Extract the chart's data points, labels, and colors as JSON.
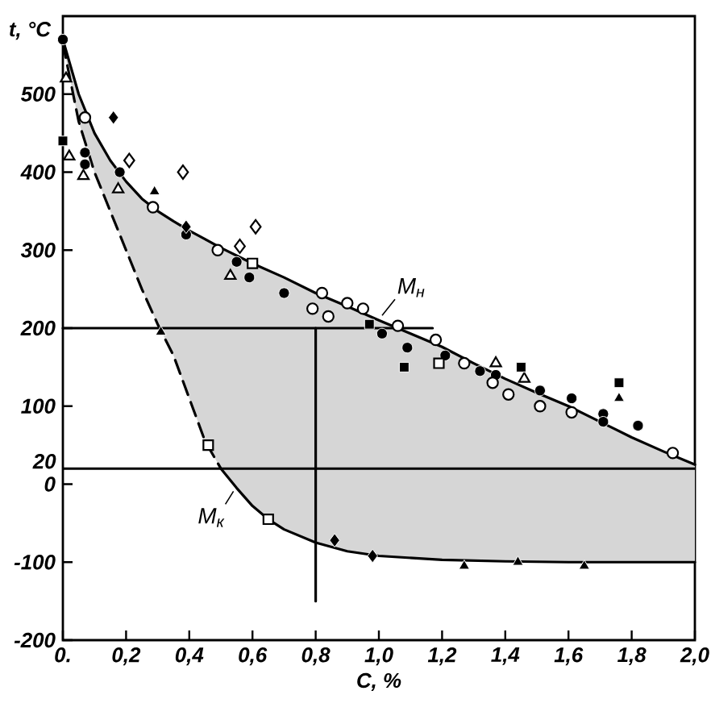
{
  "chart_data": {
    "type": "scatter",
    "xlabel": "C, %",
    "ylabel": "t, °C",
    "xlim": [
      0,
      2
    ],
    "ylim": [
      -200,
      600
    ],
    "xticks": [
      {
        "value": 0,
        "label": "0."
      },
      {
        "value": 0.2,
        "label": "0,2"
      },
      {
        "value": 0.4,
        "label": "0,4"
      },
      {
        "value": 0.6,
        "label": "0,6"
      },
      {
        "value": 0.8,
        "label": "0,8"
      },
      {
        "value": 1.0,
        "label": "1,0"
      },
      {
        "value": 1.2,
        "label": "1,2"
      },
      {
        "value": 1.4,
        "label": "1,4"
      },
      {
        "value": 1.6,
        "label": "1,6"
      },
      {
        "value": 1.8,
        "label": "1,8"
      },
      {
        "value": 2.0,
        "label": "2,0"
      }
    ],
    "yticks": [
      -200,
      -100,
      0,
      100,
      200,
      300,
      400,
      500
    ],
    "ref_lines": [
      {
        "axis": "y",
        "value": 20,
        "label": "20",
        "color": "#000000",
        "line_style": "solid"
      }
    ],
    "series": [
      {
        "name": "M$_{н}$",
        "type": "line",
        "color": "#000000",
        "line_style": "solid",
        "x": [
          0,
          0.05,
          0.1,
          0.15,
          0.2,
          0.25,
          0.3,
          0.35,
          0.4,
          0.45,
          0.5,
          0.6,
          0.7,
          0.8,
          0.9,
          1.0,
          1.1,
          1.2,
          1.3,
          1.4,
          1.5,
          1.6,
          1.7,
          1.8,
          1.9,
          2.0
        ],
        "values": [
          570,
          500,
          450,
          415,
          388,
          366,
          350,
          337,
          325,
          314,
          303,
          283,
          265,
          245,
          228,
          210,
          193,
          176,
          155,
          135,
          117,
          100,
          80,
          60,
          42,
          25
        ],
        "upper": [
          570,
          500,
          450,
          415,
          388,
          366,
          350,
          337,
          325,
          314,
          303,
          283,
          265,
          245,
          228,
          210,
          193,
          176,
          155,
          135,
          117,
          100,
          80,
          60,
          42,
          25
        ],
        "lower": [
          565,
          465,
          400,
          350,
          300,
          250,
          205,
          165,
          110,
          55,
          20,
          -28,
          -58,
          -75,
          -86,
          -92,
          -95,
          -97,
          -98,
          -99,
          -100,
          -100,
          -100,
          -100,
          -100,
          -100
        ]
      },
      {
        "type": "line",
        "color": "#000000",
        "line_style": "dashed",
        "x": [
          0,
          0.05,
          0.1,
          0.15,
          0.2,
          0.25,
          0.3,
          0.35,
          0.4,
          0.45,
          0.5
        ],
        "values": [
          565,
          465,
          400,
          350,
          300,
          250,
          205,
          165,
          110,
          55,
          20
        ]
      },
      {
        "name": "M$_{к}$",
        "type": "line",
        "color": "#000000",
        "line_style": "solid",
        "x": [
          0.5,
          0.55,
          0.6,
          0.65,
          0.7,
          0.8,
          0.9,
          1.0,
          1.2,
          1.4,
          1.6,
          1.8,
          2.0
        ],
        "values": [
          20,
          -5,
          -28,
          -45,
          -58,
          -75,
          -86,
          -92,
          -97,
          -99,
          -100,
          -100,
          -100
        ]
      },
      {
        "type": "line",
        "color": "#000000",
        "line_style": "solid",
        "x": [
          0.8,
          0.8
        ],
        "values": [
          200,
          -150
        ]
      },
      {
        "type": "line",
        "color": "#000000",
        "line_style": "solid",
        "x": [
          0,
          1.17
        ],
        "values": [
          200,
          200
        ]
      },
      {
        "marker": "circle",
        "color": "#000000",
        "x": [
          0,
          0.07,
          0.07,
          0.18,
          0.39,
          0.55,
          0.59,
          0.7,
          1.01,
          1.09,
          1.21,
          1.32,
          1.37,
          1.51,
          1.61,
          1.71,
          1.71,
          1.82
        ],
        "values": [
          570,
          425,
          410,
          400,
          320,
          285,
          265,
          245,
          193,
          175,
          165,
          145,
          140,
          120,
          110,
          90,
          80,
          75
        ]
      },
      {
        "marker": "circle",
        "color": "#ffffff",
        "x": [
          0.07,
          0.285,
          0.49,
          0.79,
          0.82,
          0.84,
          0.9,
          0.95,
          1.06,
          1.18,
          1.27,
          1.36,
          1.41,
          1.51,
          1.61,
          1.93
        ],
        "values": [
          470,
          355,
          300,
          225,
          245,
          215,
          232,
          225,
          203,
          185,
          155,
          130,
          115,
          100,
          92,
          40
        ]
      },
      {
        "marker": "diamond",
        "color": "#000000",
        "x": [
          0.16,
          0.39,
          0.86,
          0.98
        ],
        "values": [
          470,
          330,
          -72,
          -92
        ]
      },
      {
        "marker": "diamond",
        "color": "#ffffff",
        "x": [
          0.21,
          0.38,
          0.56,
          0.61
        ],
        "values": [
          415,
          400,
          305,
          330
        ]
      },
      {
        "marker": "triangle",
        "color": "#ffffff",
        "x": [
          0.01,
          0.02,
          0.065,
          0.175,
          0.53,
          1.37,
          1.46
        ],
        "values": [
          520,
          420,
          395,
          378,
          267,
          155,
          135
        ]
      },
      {
        "marker": "triangle",
        "color": "#000000",
        "x": [
          0.29,
          0.31,
          1.76,
          1.27,
          1.44,
          1.65
        ],
        "values": [
          375,
          195,
          110,
          -105,
          -100,
          -105
        ]
      },
      {
        "marker": "square",
        "color": "#000000",
        "x": [
          0,
          0.97,
          1.08,
          1.45,
          1.76
        ],
        "values": [
          440,
          205,
          150,
          150,
          130
        ]
      },
      {
        "marker": "square",
        "color": "#ffffff",
        "x": [
          0.46,
          0.6,
          0.65,
          1.19
        ],
        "values": [
          50,
          283,
          -45,
          155
        ]
      }
    ]
  }
}
